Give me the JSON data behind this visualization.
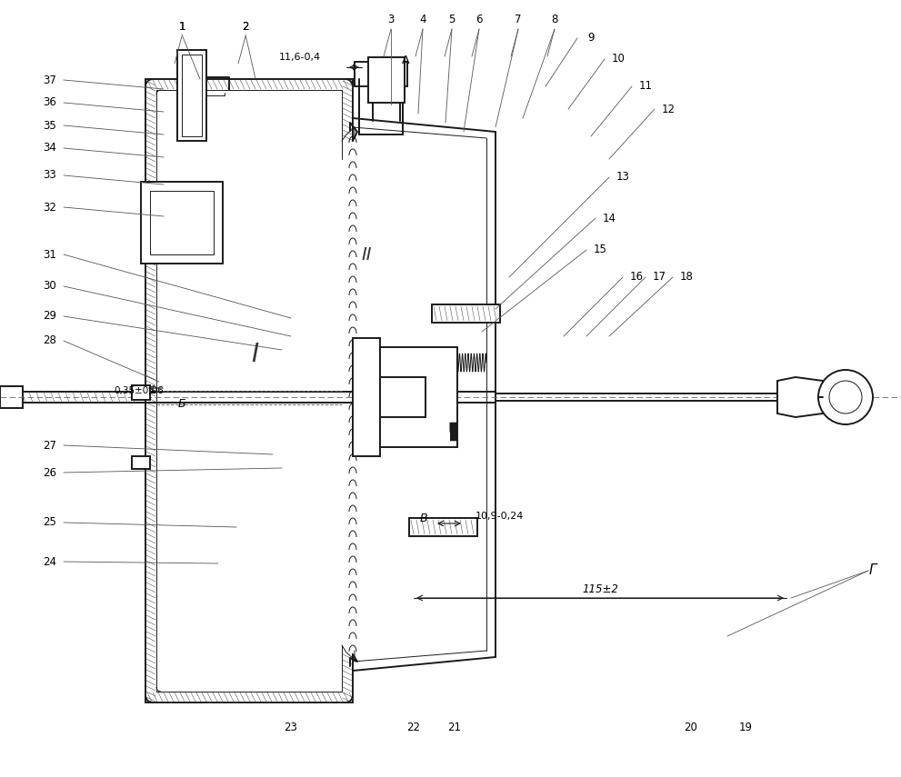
{
  "bg_color": "#ffffff",
  "line_color": "#1a1a1a",
  "lw_main": 1.4,
  "lw_thin": 0.7,
  "lw_hatch": 0.4,
  "fig_width": 9.91,
  "fig_height": 8.55,
  "dpi": 100,
  "annotations": {
    "dim1": "11,6-0,4",
    "dim2": "0,35±0,06",
    "dim3": "10,9-0,24",
    "dim4": "115±2",
    "label_A": "A",
    "label_B": "B",
    "label_G": "Г",
    "label_I": "I",
    "label_II": "II",
    "label_b": "Б"
  },
  "part_labels": {
    "top_nums": [
      [
        200,
        30,
        "1"
      ],
      [
        270,
        30,
        "2"
      ],
      [
        430,
        22,
        "3"
      ],
      [
        465,
        22,
        "4"
      ],
      [
        497,
        22,
        "5"
      ],
      [
        527,
        22,
        "6"
      ],
      [
        570,
        22,
        "7"
      ],
      [
        610,
        22,
        "8"
      ]
    ],
    "right_nums": [
      [
        650,
        42,
        "9"
      ],
      [
        680,
        65,
        "10"
      ],
      [
        710,
        95,
        "11"
      ],
      [
        735,
        120,
        "12"
      ],
      [
        685,
        195,
        "13"
      ],
      [
        670,
        240,
        "14"
      ],
      [
        660,
        275,
        "15"
      ],
      [
        700,
        305,
        "16"
      ],
      [
        725,
        305,
        "17"
      ],
      [
        755,
        305,
        "18"
      ]
    ],
    "bottom_nums": [
      [
        320,
        800,
        "23"
      ],
      [
        455,
        800,
        "22"
      ],
      [
        500,
        800,
        "21"
      ],
      [
        760,
        800,
        "20"
      ],
      [
        820,
        800,
        "19"
      ]
    ],
    "left_top_nums": [
      [
        55,
        88,
        "37"
      ],
      [
        55,
        113,
        "36"
      ],
      [
        55,
        138,
        "35"
      ],
      [
        55,
        163,
        "34"
      ],
      [
        55,
        193,
        "33"
      ],
      [
        55,
        228,
        "32"
      ]
    ],
    "left_nums": [
      [
        55,
        280,
        "31"
      ],
      [
        55,
        315,
        "30"
      ],
      [
        55,
        348,
        "29"
      ],
      [
        55,
        375,
        "28"
      ],
      [
        55,
        490,
        "27"
      ],
      [
        55,
        520,
        "26"
      ],
      [
        55,
        575,
        "25"
      ],
      [
        55,
        618,
        "24"
      ]
    ]
  }
}
